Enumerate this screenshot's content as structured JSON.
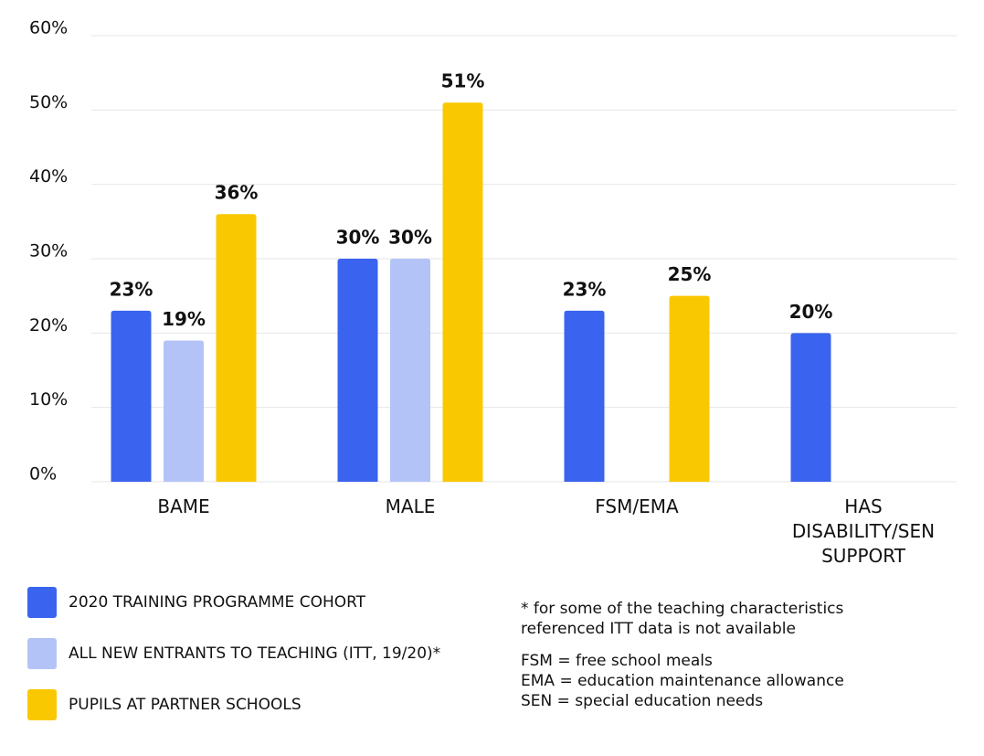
{
  "chart_data": {
    "type": "bar",
    "categories": [
      "BAME",
      "MALE",
      "FSM/EMA",
      "HAS DISABILITY/SEN SUPPORT"
    ],
    "series": [
      {
        "name": "2020 TRAINING PROGRAMME COHORT",
        "color": "#3a63ef",
        "values": [
          23,
          30,
          23,
          20
        ],
        "value_labels": [
          "23%",
          "30%",
          "23%",
          "20%"
        ]
      },
      {
        "name": "ALL NEW ENTRANTS TO TEACHING (ITT, 19/20)*",
        "color": "#b3c3f8",
        "values": [
          19,
          30,
          null,
          null
        ],
        "value_labels": [
          "19%",
          "30%",
          null,
          null
        ]
      },
      {
        "name": "PUPILS AT PARTNER SCHOOLS",
        "color": "#f9c800",
        "values": [
          36,
          51,
          25,
          null
        ],
        "value_labels": [
          "36%",
          "51%",
          "25%",
          null
        ]
      }
    ],
    "ylim": [
      0,
      60
    ],
    "yticks": [
      {
        "value": 0,
        "label": "0%"
      },
      {
        "value": 10,
        "label": "10%"
      },
      {
        "value": 20,
        "label": "20%"
      },
      {
        "value": 30,
        "label": "30%"
      },
      {
        "value": 40,
        "label": "40%"
      },
      {
        "value": 50,
        "label": "50%"
      },
      {
        "value": 60,
        "label": "60%"
      }
    ],
    "grid": true,
    "notes": [
      "* for some of the teaching characteristics referenced ITT data is not available",
      "FSM = free school meals",
      "EMA = education maintenance allowance",
      "SEN = special education needs"
    ]
  }
}
